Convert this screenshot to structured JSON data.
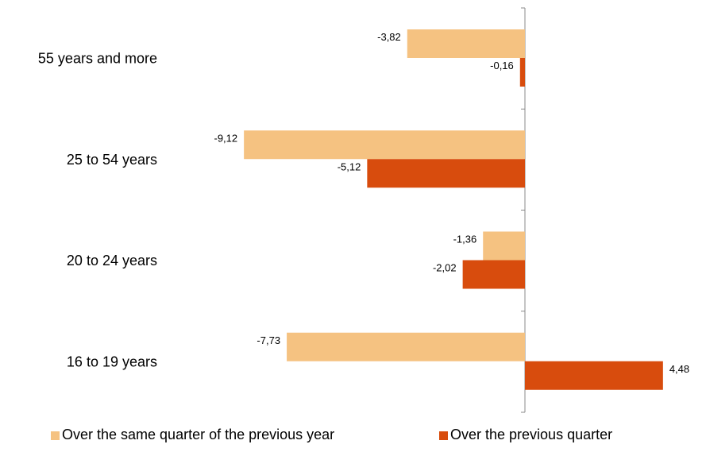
{
  "chart_data": {
    "type": "bar",
    "orientation": "horizontal",
    "categories": [
      "55 years and more",
      "25 to 54 years",
      "20 to 24 years",
      "16 to 19 years"
    ],
    "series": [
      {
        "name": "Over the same quarter of  the previous year",
        "color": "#F5C281",
        "values": [
          -3.82,
          -9.12,
          -1.36,
          -7.73
        ],
        "labels": [
          "-3,82",
          "-9,12",
          "-1,36",
          "-7,73"
        ]
      },
      {
        "name": "Over the previous quarter",
        "color": "#D84C0D",
        "values": [
          -0.16,
          -5.12,
          -2.02,
          4.48
        ],
        "labels": [
          "-0,16",
          "-5,12",
          "-2,02",
          "4,48"
        ]
      }
    ],
    "xlim": [
      -10,
      5
    ],
    "grid": false,
    "legend_position": "bottom"
  }
}
